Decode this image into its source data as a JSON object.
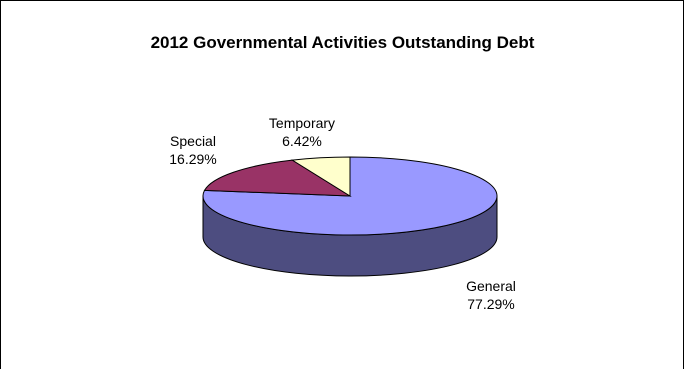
{
  "chart_data": {
    "type": "pie",
    "style": "3d",
    "title": "2012 Governmental Activities Outstanding Debt",
    "slices": [
      {
        "name": "General",
        "value": 77.29,
        "label": "77.29%",
        "color": "#9999ff",
        "side_color": "#4d4d80"
      },
      {
        "name": "Special",
        "value": 16.29,
        "label": "16.29%",
        "color": "#993366",
        "side_color": "#4d1a33"
      },
      {
        "name": "Temporary",
        "value": 6.42,
        "label": "6.42%",
        "color": "#ffffcc",
        "side_color": "#808066"
      }
    ]
  }
}
